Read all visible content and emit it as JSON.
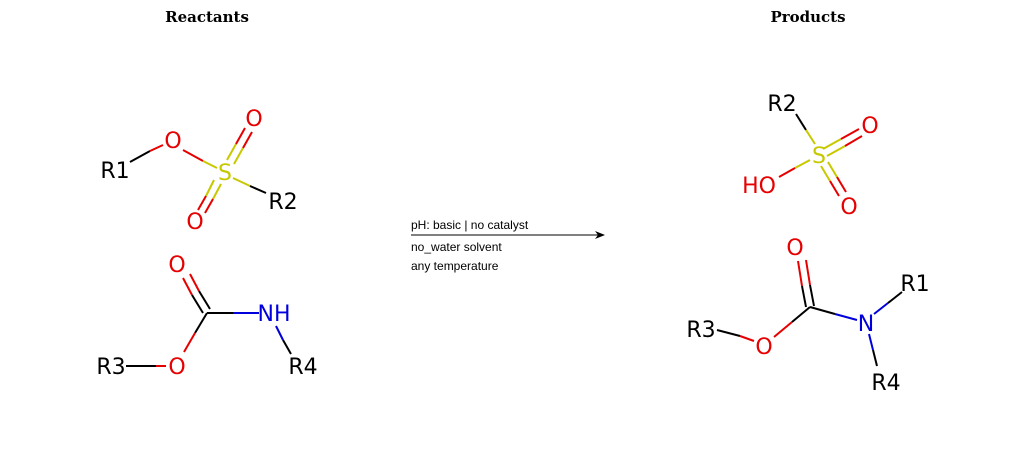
{
  "headings": {
    "reactants": "Reactants",
    "products": "Products"
  },
  "conditions": {
    "line1": "pH: basic | no catalyst",
    "line2": "no_water solvent",
    "line3": "any temperature"
  },
  "colors": {
    "carbon": "#000000",
    "oxygen": "#e60000",
    "nitrogen": "#0000dd",
    "sulfur": "#c8c800"
  },
  "reactant_1": {
    "r_group_1": "R1",
    "oxygen_ether": "O",
    "sulfur": "S",
    "oxygen_top": "O",
    "oxygen_bottom": "O",
    "r_group_2": "R2"
  },
  "reactant_2": {
    "oxygen_carbonyl": "O",
    "amine": "NH",
    "r_group_3": "R3",
    "oxygen_ester": "O",
    "r_group_4": "R4"
  },
  "product_1": {
    "r_group_2": "R2",
    "oxygen_right": "O",
    "sulfur": "S",
    "hydroxyl": "HO",
    "oxygen_bottom": "O"
  },
  "product_2": {
    "oxygen_carbonyl": "O",
    "r_group_1": "R1",
    "nitrogen": "N",
    "r_group_3": "R3",
    "oxygen_ester": "O",
    "r_group_4": "R4"
  }
}
